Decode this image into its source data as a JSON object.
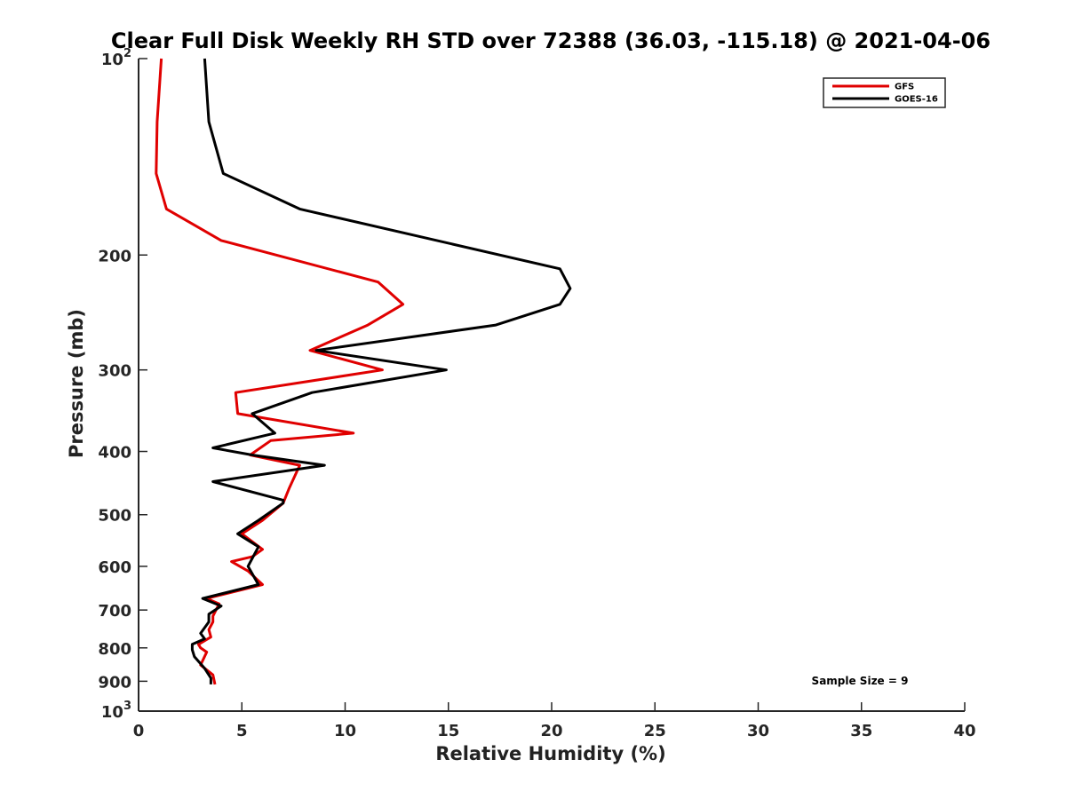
{
  "chart_data": {
    "type": "line",
    "title": "Clear Full Disk Weekly RH STD over 72388 (36.03, -115.18) @ 2021-04-06",
    "xlabel": "Relative Humidity (%)",
    "ylabel": "Pressure (mb)",
    "xlim": [
      0,
      40
    ],
    "ylim": [
      100,
      1000
    ],
    "y_scale": "log",
    "y_reversed": true,
    "grid": false,
    "legend_position": "top-right",
    "x_ticks": [
      "0",
      "5",
      "10",
      "15",
      "20",
      "25",
      "30",
      "35",
      "40"
    ],
    "x_tick_values": [
      0,
      5,
      10,
      15,
      20,
      25,
      30,
      35,
      40
    ],
    "y_ticks": [
      {
        "value": 100,
        "base": "10",
        "exp": "2"
      },
      {
        "value": 200,
        "base": "200",
        "exp": ""
      },
      {
        "value": 300,
        "base": "300",
        "exp": ""
      },
      {
        "value": 400,
        "base": "400",
        "exp": ""
      },
      {
        "value": 500,
        "base": "500",
        "exp": ""
      },
      {
        "value": 600,
        "base": "600",
        "exp": ""
      },
      {
        "value": 700,
        "base": "700",
        "exp": ""
      },
      {
        "value": 800,
        "base": "800",
        "exp": ""
      },
      {
        "value": 900,
        "base": "900",
        "exp": ""
      },
      {
        "value": 1000,
        "base": "10",
        "exp": "3"
      }
    ],
    "annotation": "Sample Size = 9",
    "series": [
      {
        "name": "GFS",
        "color": "#e00000",
        "points": [
          [
            1.1,
            100
          ],
          [
            0.9,
            125
          ],
          [
            0.85,
            150
          ],
          [
            1.35,
            170
          ],
          [
            4.0,
            190
          ],
          [
            11.6,
            220
          ],
          [
            12.8,
            238
          ],
          [
            11.1,
            256
          ],
          [
            8.3,
            280
          ],
          [
            11.8,
            300
          ],
          [
            4.7,
            325
          ],
          [
            4.8,
            350
          ],
          [
            10.4,
            375
          ],
          [
            6.4,
            385
          ],
          [
            5.4,
            405
          ],
          [
            7.8,
            420
          ],
          [
            7.3,
            455
          ],
          [
            7.0,
            480
          ],
          [
            6.0,
            510
          ],
          [
            5.0,
            535
          ],
          [
            6.0,
            565
          ],
          [
            5.5,
            580
          ],
          [
            4.5,
            590
          ],
          [
            5.3,
            610
          ],
          [
            6.0,
            640
          ],
          [
            3.3,
            672
          ],
          [
            3.9,
            685
          ],
          [
            3.6,
            715
          ],
          [
            3.6,
            730
          ],
          [
            3.4,
            750
          ],
          [
            3.5,
            770
          ],
          [
            2.9,
            790
          ],
          [
            3.0,
            800
          ],
          [
            3.3,
            812
          ],
          [
            3.0,
            850
          ],
          [
            3.6,
            880
          ],
          [
            3.7,
            910
          ]
        ]
      },
      {
        "name": "GOES-16",
        "color": "#000000",
        "points": [
          [
            3.2,
            100
          ],
          [
            3.4,
            125
          ],
          [
            4.1,
            150
          ],
          [
            7.8,
            170
          ],
          [
            20.4,
            210
          ],
          [
            20.9,
            225
          ],
          [
            20.4,
            238
          ],
          [
            17.3,
            256
          ],
          [
            8.6,
            280
          ],
          [
            14.9,
            300
          ],
          [
            8.4,
            325
          ],
          [
            5.5,
            350
          ],
          [
            6.6,
            375
          ],
          [
            3.6,
            395
          ],
          [
            5.5,
            405
          ],
          [
            9.0,
            420
          ],
          [
            3.6,
            445
          ],
          [
            7.0,
            475
          ],
          [
            7.0,
            480
          ],
          [
            5.8,
            510
          ],
          [
            4.8,
            535
          ],
          [
            5.8,
            560
          ],
          [
            5.3,
            600
          ],
          [
            5.8,
            640
          ],
          [
            3.1,
            672
          ],
          [
            4.0,
            690
          ],
          [
            3.4,
            710
          ],
          [
            3.4,
            730
          ],
          [
            3.2,
            745
          ],
          [
            3.0,
            760
          ],
          [
            3.2,
            775
          ],
          [
            2.6,
            790
          ],
          [
            2.6,
            805
          ],
          [
            2.7,
            825
          ],
          [
            3.2,
            860
          ],
          [
            3.5,
            890
          ],
          [
            3.5,
            910
          ]
        ]
      }
    ]
  }
}
